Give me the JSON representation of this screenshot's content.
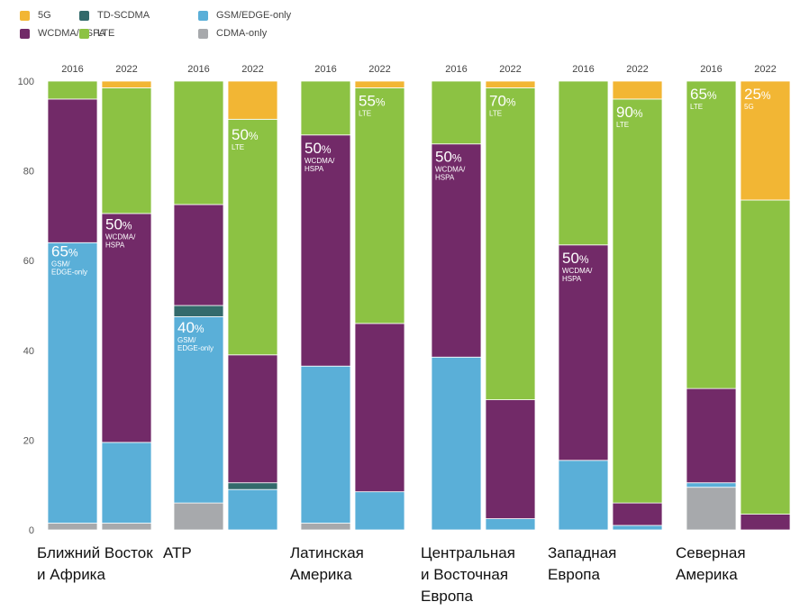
{
  "chart_data": {
    "type": "bar",
    "stacked": true,
    "ylim": [
      0,
      100
    ],
    "yticks": [
      0,
      20,
      40,
      60,
      80,
      100
    ],
    "grid": false,
    "legend_position": "top-left",
    "series": [
      {
        "name": "CDMA-only",
        "color": "#a7a9ac"
      },
      {
        "name": "GSM/EDGE-only",
        "color": "#5aafd8"
      },
      {
        "name": "TD-SCDMA",
        "color": "#336a6b"
      },
      {
        "name": "WCDMA/HSPA",
        "color": "#722a68"
      },
      {
        "name": "LTE",
        "color": "#8cc243"
      },
      {
        "name": "5G",
        "color": "#f2b634"
      }
    ],
    "legend_order": [
      "5G",
      "WCDMA/HSPA",
      "TD-SCDMA",
      "LTE",
      "GSM/EDGE-only",
      "CDMA-only"
    ],
    "groups": [
      {
        "name": "Ближний Восток\nи Африка",
        "bars": [
          {
            "year": "2016",
            "values": {
              "CDMA-only": 1.5,
              "GSM/EDGE-only": 62.5,
              "TD-SCDMA": 0,
              "WCDMA/HSPA": 32,
              "LTE": 4,
              "5G": 0
            }
          },
          {
            "year": "2022",
            "values": {
              "CDMA-only": 1.5,
              "GSM/EDGE-only": 18,
              "TD-SCDMA": 0,
              "WCDMA/HSPA": 51,
              "LTE": 28,
              "5G": 1.5
            }
          }
        ]
      },
      {
        "name": "АТР",
        "bars": [
          {
            "year": "2016",
            "values": {
              "CDMA-only": 6,
              "GSM/EDGE-only": 41.5,
              "TD-SCDMA": 2.5,
              "WCDMA/HSPA": 22.5,
              "LTE": 27.5,
              "5G": 0
            }
          },
          {
            "year": "2022",
            "values": {
              "CDMA-only": 0,
              "GSM/EDGE-only": 9,
              "TD-SCDMA": 1.5,
              "WCDMA/HSPA": 28.5,
              "LTE": 52.5,
              "5G": 8.5
            }
          }
        ]
      },
      {
        "name": "Латинская\nАмерика",
        "bars": [
          {
            "year": "2016",
            "values": {
              "CDMA-only": 1.5,
              "GSM/EDGE-only": 35,
              "TD-SCDMA": 0,
              "WCDMA/HSPA": 51.5,
              "LTE": 12,
              "5G": 0
            }
          },
          {
            "year": "2022",
            "values": {
              "CDMA-only": 0,
              "GSM/EDGE-only": 8.5,
              "TD-SCDMA": 0,
              "WCDMA/HSPA": 37.5,
              "LTE": 52.5,
              "5G": 1.5
            }
          }
        ]
      },
      {
        "name": "Центральная\nи Восточная\nЕвропа",
        "bars": [
          {
            "year": "2016",
            "values": {
              "CDMA-only": 0,
              "GSM/EDGE-only": 38.5,
              "TD-SCDMA": 0,
              "WCDMA/HSPA": 47.5,
              "LTE": 14,
              "5G": 0
            }
          },
          {
            "year": "2022",
            "values": {
              "CDMA-only": 0,
              "GSM/EDGE-only": 2.5,
              "TD-SCDMA": 0,
              "WCDMA/HSPA": 26.5,
              "LTE": 69.5,
              "5G": 1.5
            }
          }
        ]
      },
      {
        "name": "Западная\nЕвропа",
        "bars": [
          {
            "year": "2016",
            "values": {
              "CDMA-only": 0,
              "GSM/EDGE-only": 15.5,
              "TD-SCDMA": 0,
              "WCDMA/HSPA": 48,
              "LTE": 36.5,
              "5G": 0
            }
          },
          {
            "year": "2022",
            "values": {
              "CDMA-only": 0,
              "GSM/EDGE-only": 1,
              "TD-SCDMA": 0,
              "WCDMA/HSPA": 5,
              "LTE": 90,
              "5G": 4
            }
          }
        ]
      },
      {
        "name": "Северная\nАмерика",
        "bars": [
          {
            "year": "2016",
            "values": {
              "CDMA-only": 9.5,
              "GSM/EDGE-only": 1,
              "TD-SCDMA": 0,
              "WCDMA/HSPA": 21,
              "LTE": 68.5,
              "5G": 0
            }
          },
          {
            "year": "2022",
            "values": {
              "CDMA-only": 0,
              "GSM/EDGE-only": 0,
              "TD-SCDMA": 0,
              "WCDMA/HSPA": 3.5,
              "LTE": 70,
              "5G": 26.5
            }
          }
        ]
      }
    ],
    "annotations": [
      {
        "group": 0,
        "bar": 0,
        "value": 65,
        "percent": "65",
        "label": "GSM/\nEDGE-only"
      },
      {
        "group": 0,
        "bar": 1,
        "value": 71,
        "percent": "50",
        "label": "WCDMA/\nHSPA"
      },
      {
        "group": 1,
        "bar": 0,
        "value": 48,
        "percent": "40",
        "label": "GSM/\nEDGE-only"
      },
      {
        "group": 1,
        "bar": 1,
        "value": 91,
        "percent": "50",
        "label": "LTE"
      },
      {
        "group": 2,
        "bar": 0,
        "value": 88,
        "percent": "50",
        "label": "WCDMA/\nHSPA"
      },
      {
        "group": 2,
        "bar": 1,
        "value": 98.5,
        "percent": "55",
        "label": "LTE"
      },
      {
        "group": 3,
        "bar": 0,
        "value": 86,
        "percent": "50",
        "label": "WCDMA/\nHSPA"
      },
      {
        "group": 3,
        "bar": 1,
        "value": 98.5,
        "percent": "70",
        "label": "LTE"
      },
      {
        "group": 4,
        "bar": 0,
        "value": 63.5,
        "percent": "50",
        "label": "WCDMA/\nHSPA"
      },
      {
        "group": 4,
        "bar": 1,
        "value": 96,
        "percent": "90",
        "label": "LTE"
      },
      {
        "group": 5,
        "bar": 0,
        "value": 100,
        "percent": "65",
        "label": "LTE"
      },
      {
        "group": 5,
        "bar": 1,
        "value": 100,
        "percent": "25",
        "label": "5G"
      }
    ],
    "percent_sign": "%"
  }
}
